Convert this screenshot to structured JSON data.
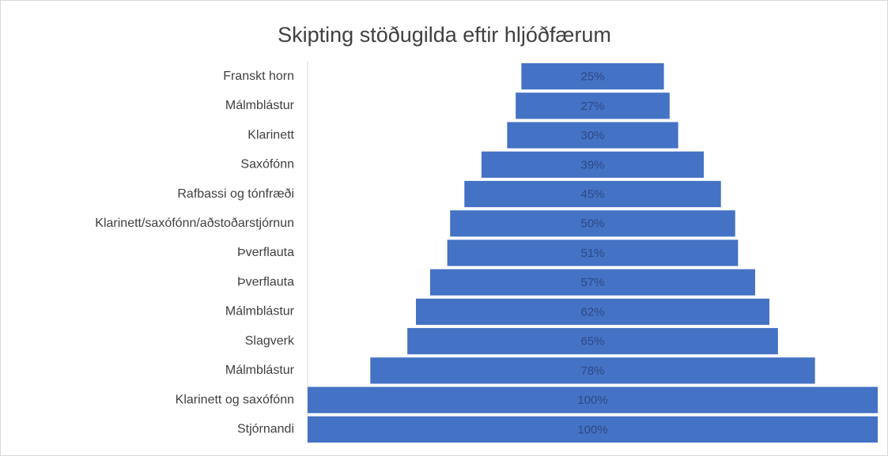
{
  "chart_data": {
    "type": "funnel",
    "title": "Skipting stöðugilda eftir hljóðfærum",
    "categories": [
      "Franskt horn",
      "Málmblástur",
      "Klarinett",
      "Saxófónn",
      "Rafbassi og tónfræði",
      "Klarinett/saxófónn/aðstoðarstjórnun",
      "Þverflauta",
      "Þverflauta",
      "Málmblástur",
      "Slagverk",
      "Málmblástur",
      "Klarinett og saxófónn",
      "Stjórnandi"
    ],
    "values": [
      25,
      27,
      30,
      39,
      45,
      50,
      51,
      57,
      62,
      65,
      78,
      100,
      100
    ],
    "value_labels": [
      "25%",
      "27%",
      "30%",
      "39%",
      "45%",
      "50%",
      "51%",
      "57%",
      "62%",
      "65%",
      "78%",
      "100%",
      "100%"
    ],
    "color": "#4472c4"
  }
}
